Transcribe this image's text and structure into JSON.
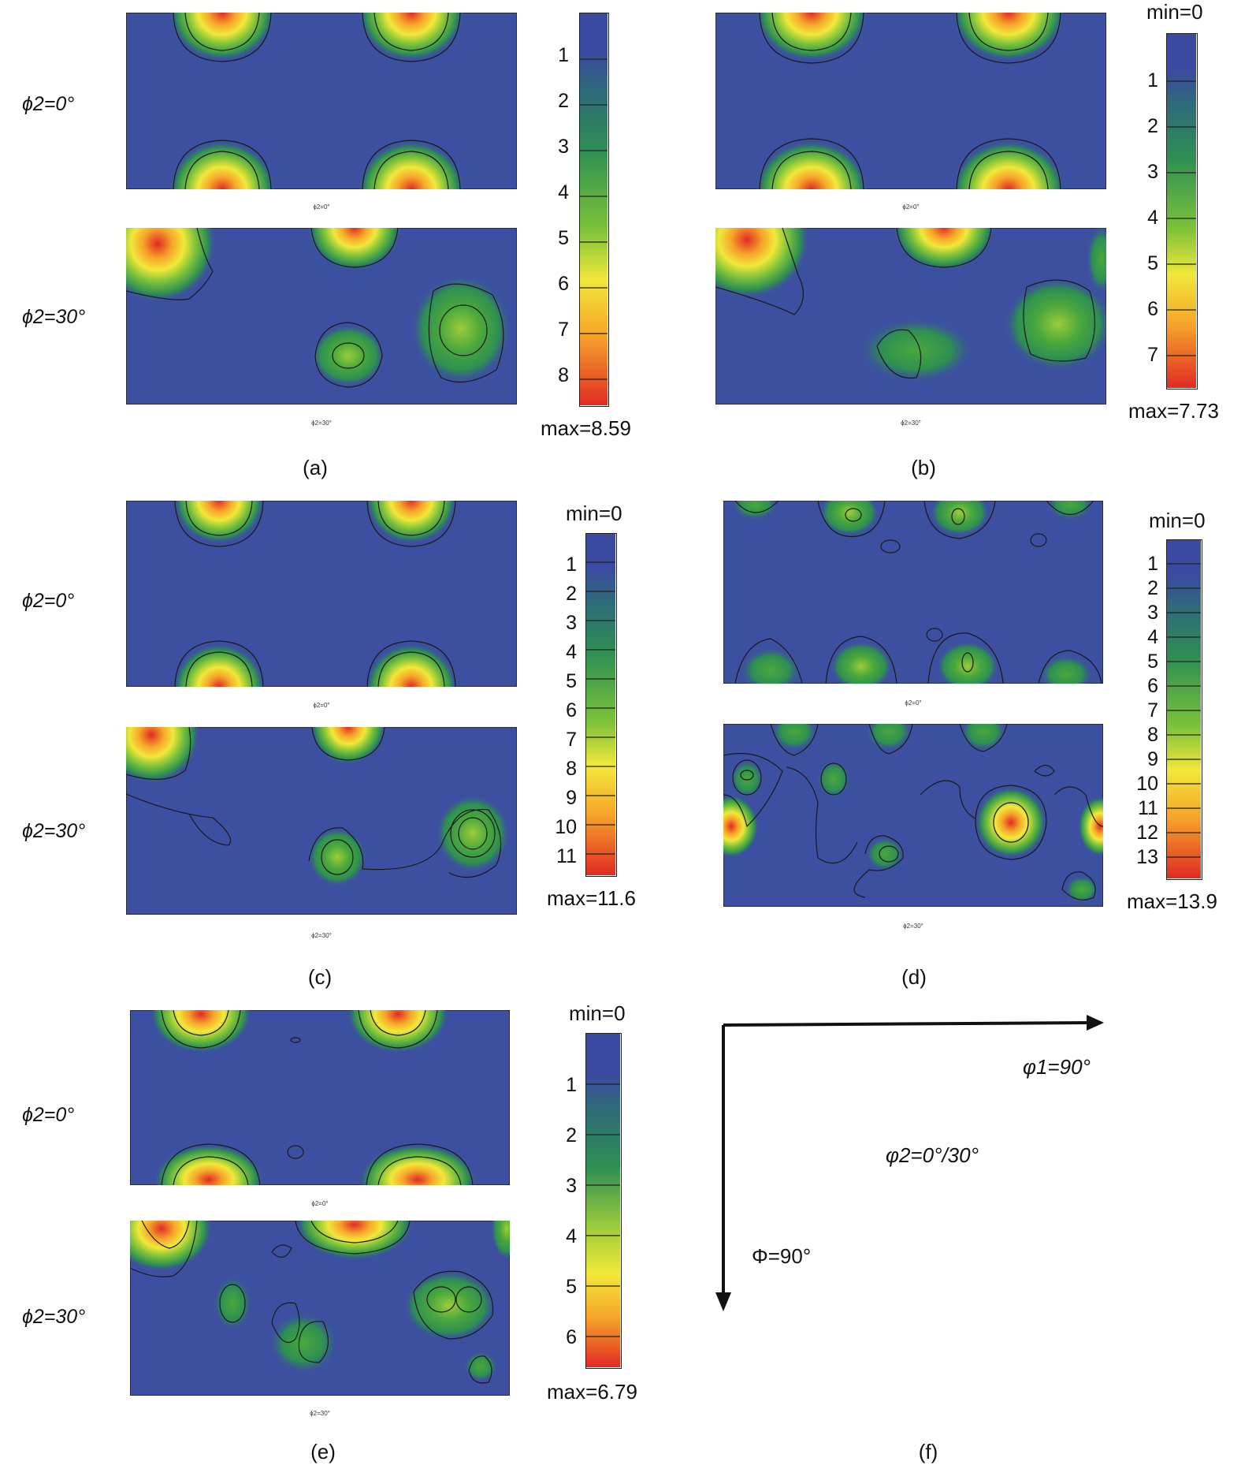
{
  "panels": [
    {
      "letter": "(a)",
      "row_labels": [
        "ϕ2=0°",
        "ϕ2=30°"
      ],
      "captions": [
        "ϕ2=0°",
        "ϕ2=30°"
      ],
      "colorbar": {
        "min_label": "",
        "max_label": "max=8.59",
        "ticks": [
          "1",
          "2",
          "3",
          "4",
          "5",
          "6",
          "7",
          "8"
        ]
      }
    },
    {
      "letter": "(b)",
      "captions": [
        "ϕ2=0°",
        "ϕ2=30°"
      ],
      "colorbar": {
        "min_label": "min=0",
        "max_label": "max=7.73",
        "ticks": [
          "1",
          "2",
          "3",
          "4",
          "5",
          "6",
          "7"
        ]
      }
    },
    {
      "letter": "(c)",
      "row_labels": [
        "ϕ2=0°",
        "ϕ2=30°"
      ],
      "captions": [
        "ϕ2=0°",
        "ϕ2=30°"
      ],
      "colorbar": {
        "min_label": "min=0",
        "max_label": "max=11.6",
        "ticks": [
          "1",
          "2",
          "3",
          "4",
          "5",
          "6",
          "7",
          "8",
          "9",
          "10",
          "11"
        ]
      }
    },
    {
      "letter": "(d)",
      "captions": [
        "ϕ2=0°",
        "ϕ2=30°"
      ],
      "colorbar": {
        "min_label": "min=0",
        "max_label": "max=13.9",
        "ticks": [
          "1",
          "2",
          "3",
          "4",
          "5",
          "6",
          "7",
          "8",
          "9",
          "10",
          "11",
          "12",
          "13"
        ]
      }
    },
    {
      "letter": "(e)",
      "row_labels": [
        "ϕ2=0°",
        "ϕ2=30°"
      ],
      "captions": [
        "ϕ2=0°",
        "ϕ2=30°"
      ],
      "colorbar": {
        "min_label": "min=0",
        "max_label": "max=6.79",
        "ticks": [
          "1",
          "2",
          "3",
          "4",
          "5",
          "6"
        ]
      }
    }
  ],
  "axes_panel": {
    "letter": "(f)",
    "x_label": "φ1=90°",
    "y_label": "Φ=90°",
    "center_label": "φ2=0°/30°"
  },
  "colors": {
    "background_blue": "#3c4fa0",
    "scale": [
      "#3a4aa0",
      "#2f6a7a",
      "#2e8f52",
      "#4aa83c",
      "#7cc23a",
      "#f2e83a",
      "#f6a52a",
      "#ea4a2a",
      "#e02a24"
    ]
  }
}
